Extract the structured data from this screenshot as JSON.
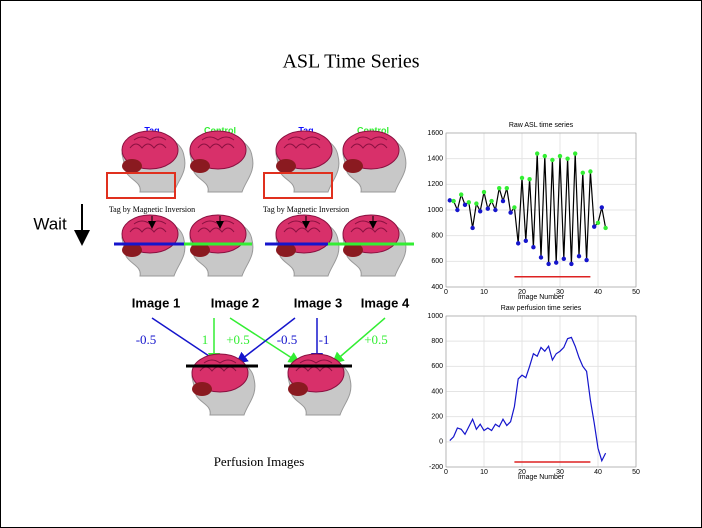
{
  "title": "ASL Time Series",
  "diagram": {
    "labels": [
      "Tag",
      "Control",
      "Tag",
      "Control"
    ],
    "label_colors": [
      "#1010ff",
      "#33ee33",
      "#1010ff",
      "#33ee33"
    ],
    "wait": "Wait",
    "inversion": [
      "Tag by Magnetic Inversion",
      "Tag by Magnetic Inversion"
    ],
    "images": [
      "Image 1",
      "Image 2",
      "Image 3",
      "Image 4"
    ],
    "weights": [
      "-0.5",
      "1",
      "+0.5",
      "-0.5",
      "-1",
      "+0.5"
    ],
    "caption": "Perfusion Images"
  },
  "chart_data": [
    {
      "type": "line",
      "title": "Raw ASL time series",
      "xlabel": "Image Number",
      "xlim": [
        0,
        50
      ],
      "xticks": [
        0,
        10,
        20,
        30,
        40,
        50
      ],
      "ylim": [
        400,
        1600
      ],
      "yticks": [
        400,
        600,
        800,
        1000,
        1200,
        1400,
        1600
      ],
      "grid": true,
      "x": [
        1,
        2,
        3,
        4,
        5,
        6,
        7,
        8,
        9,
        10,
        11,
        12,
        13,
        14,
        15,
        16,
        17,
        18,
        19,
        20,
        21,
        22,
        23,
        24,
        25,
        26,
        27,
        28,
        29,
        30,
        31,
        32,
        33,
        34,
        35,
        36,
        37,
        38,
        39,
        40,
        41,
        42
      ],
      "series": [
        {
          "color": "#000000",
          "marker_colors": [
            "#1515cc",
            "#33ee33"
          ],
          "values": [
            1075,
            1070,
            1000,
            1120,
            1040,
            1060,
            860,
            1050,
            990,
            1140,
            1010,
            1070,
            1000,
            1170,
            1070,
            1170,
            980,
            1020,
            740,
            1250,
            760,
            1240,
            710,
            1440,
            630,
            1420,
            580,
            1390,
            590,
            1420,
            620,
            1400,
            580,
            1440,
            640,
            1290,
            610,
            1300,
            870,
            900,
            1020,
            860
          ]
        }
      ],
      "highlight": {
        "x": [
          18,
          38
        ],
        "y": 480,
        "color": "#dd2222"
      }
    },
    {
      "type": "line",
      "title": "Raw perfusion time series",
      "xlabel": "Image Number",
      "xlim": [
        0,
        50
      ],
      "xticks": [
        0,
        10,
        20,
        30,
        40,
        50
      ],
      "ylim": [
        -200,
        1000
      ],
      "yticks": [
        -200,
        0,
        200,
        400,
        600,
        800,
        1000
      ],
      "grid": true,
      "x": [
        1,
        2,
        3,
        4,
        5,
        6,
        7,
        8,
        9,
        10,
        11,
        12,
        13,
        14,
        15,
        16,
        17,
        18,
        19,
        20,
        21,
        22,
        23,
        24,
        25,
        26,
        27,
        28,
        29,
        30,
        31,
        32,
        33,
        34,
        35,
        36,
        37,
        38,
        39,
        40,
        41,
        42
      ],
      "series": [
        {
          "color": "#1515cc",
          "values": [
            10,
            40,
            110,
            100,
            60,
            120,
            180,
            100,
            140,
            90,
            110,
            90,
            140,
            120,
            180,
            130,
            160,
            280,
            500,
            530,
            510,
            600,
            700,
            680,
            750,
            720,
            760,
            650,
            700,
            720,
            750,
            820,
            830,
            760,
            670,
            600,
            560,
            330,
            150,
            -50,
            -150,
            -90
          ]
        }
      ],
      "highlight": {
        "x": [
          18,
          38
        ],
        "y": -160,
        "color": "#dd2222"
      }
    }
  ]
}
